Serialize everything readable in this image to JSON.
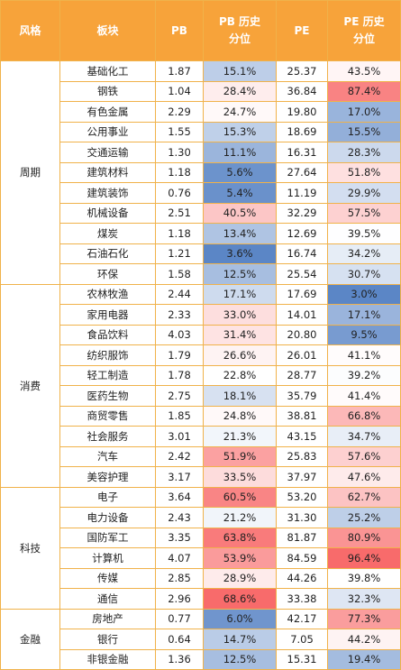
{
  "headers": {
    "style": "风格",
    "sector": "板块",
    "pb": "PB",
    "pb_pct": "PB 历史分位",
    "pe": "PE",
    "pe_pct": "PE 历史分位"
  },
  "groups": [
    {
      "name": "周期",
      "rows": [
        {
          "sector": "基础化工",
          "pb": "1.87",
          "pb_pct": "15.1%",
          "pe": "25.37",
          "pe_pct": "43.5%"
        },
        {
          "sector": "钢铁",
          "pb": "1.04",
          "pb_pct": "28.4%",
          "pe": "36.84",
          "pe_pct": "87.4%"
        },
        {
          "sector": "有色金属",
          "pb": "2.29",
          "pb_pct": "24.7%",
          "pe": "19.80",
          "pe_pct": "17.0%"
        },
        {
          "sector": "公用事业",
          "pb": "1.55",
          "pb_pct": "15.3%",
          "pe": "18.69",
          "pe_pct": "15.5%"
        },
        {
          "sector": "交通运输",
          "pb": "1.30",
          "pb_pct": "11.1%",
          "pe": "16.31",
          "pe_pct": "28.3%"
        },
        {
          "sector": "建筑材料",
          "pb": "1.18",
          "pb_pct": "5.6%",
          "pe": "27.64",
          "pe_pct": "51.8%"
        },
        {
          "sector": "建筑装饰",
          "pb": "0.76",
          "pb_pct": "5.4%",
          "pe": "11.19",
          "pe_pct": "29.9%"
        },
        {
          "sector": "机械设备",
          "pb": "2.51",
          "pb_pct": "40.5%",
          "pe": "32.29",
          "pe_pct": "57.5%"
        },
        {
          "sector": "煤炭",
          "pb": "1.18",
          "pb_pct": "13.4%",
          "pe": "12.69",
          "pe_pct": "39.5%"
        },
        {
          "sector": "石油石化",
          "pb": "1.21",
          "pb_pct": "3.6%",
          "pe": "16.74",
          "pe_pct": "34.2%"
        },
        {
          "sector": "环保",
          "pb": "1.58",
          "pb_pct": "12.5%",
          "pe": "25.54",
          "pe_pct": "30.7%"
        }
      ]
    },
    {
      "name": "消费",
      "rows": [
        {
          "sector": "农林牧渔",
          "pb": "2.44",
          "pb_pct": "17.1%",
          "pe": "17.69",
          "pe_pct": "3.0%"
        },
        {
          "sector": "家用电器",
          "pb": "2.33",
          "pb_pct": "33.0%",
          "pe": "14.01",
          "pe_pct": "17.1%"
        },
        {
          "sector": "食品饮料",
          "pb": "4.03",
          "pb_pct": "31.4%",
          "pe": "20.80",
          "pe_pct": "9.5%"
        },
        {
          "sector": "纺织服饰",
          "pb": "1.79",
          "pb_pct": "26.6%",
          "pe": "26.01",
          "pe_pct": "41.1%"
        },
        {
          "sector": "轻工制造",
          "pb": "1.78",
          "pb_pct": "22.8%",
          "pe": "28.77",
          "pe_pct": "39.2%"
        },
        {
          "sector": "医药生物",
          "pb": "2.75",
          "pb_pct": "18.1%",
          "pe": "35.79",
          "pe_pct": "41.4%"
        },
        {
          "sector": "商贸零售",
          "pb": "1.85",
          "pb_pct": "24.8%",
          "pe": "38.81",
          "pe_pct": "66.8%"
        },
        {
          "sector": "社会服务",
          "pb": "3.01",
          "pb_pct": "21.3%",
          "pe": "43.15",
          "pe_pct": "34.7%"
        },
        {
          "sector": "汽车",
          "pb": "2.42",
          "pb_pct": "51.9%",
          "pe": "25.83",
          "pe_pct": "57.6%"
        },
        {
          "sector": "美容护理",
          "pb": "3.17",
          "pb_pct": "33.5%",
          "pe": "37.97",
          "pe_pct": "47.6%"
        }
      ]
    },
    {
      "name": "科技",
      "rows": [
        {
          "sector": "电子",
          "pb": "3.64",
          "pb_pct": "60.5%",
          "pe": "53.20",
          "pe_pct": "62.7%"
        },
        {
          "sector": "电力设备",
          "pb": "2.43",
          "pb_pct": "21.2%",
          "pe": "31.30",
          "pe_pct": "25.2%"
        },
        {
          "sector": "国防军工",
          "pb": "3.35",
          "pb_pct": "63.8%",
          "pe": "81.87",
          "pe_pct": "80.9%"
        },
        {
          "sector": "计算机",
          "pb": "4.07",
          "pb_pct": "53.9%",
          "pe": "84.59",
          "pe_pct": "96.4%"
        },
        {
          "sector": "传媒",
          "pb": "2.85",
          "pb_pct": "28.9%",
          "pe": "44.26",
          "pe_pct": "39.8%"
        },
        {
          "sector": "通信",
          "pb": "2.96",
          "pb_pct": "68.6%",
          "pe": "33.38",
          "pe_pct": "32.3%"
        }
      ]
    },
    {
      "name": "金融",
      "rows": [
        {
          "sector": "房地产",
          "pb": "0.77",
          "pb_pct": "6.0%",
          "pe": "42.17",
          "pe_pct": "77.3%"
        },
        {
          "sector": "银行",
          "pb": "0.64",
          "pb_pct": "14.7%",
          "pe": "7.05",
          "pe_pct": "44.2%"
        },
        {
          "sector": "非银金融",
          "pb": "1.36",
          "pb_pct": "12.5%",
          "pe": "15.31",
          "pe_pct": "19.4%"
        }
      ]
    }
  ],
  "colors": {
    "header_bg": "#f7a33a",
    "border": "#f0b24a",
    "low": "#5b86c6",
    "mid": "#ffffff",
    "high": "#f86b6b"
  }
}
